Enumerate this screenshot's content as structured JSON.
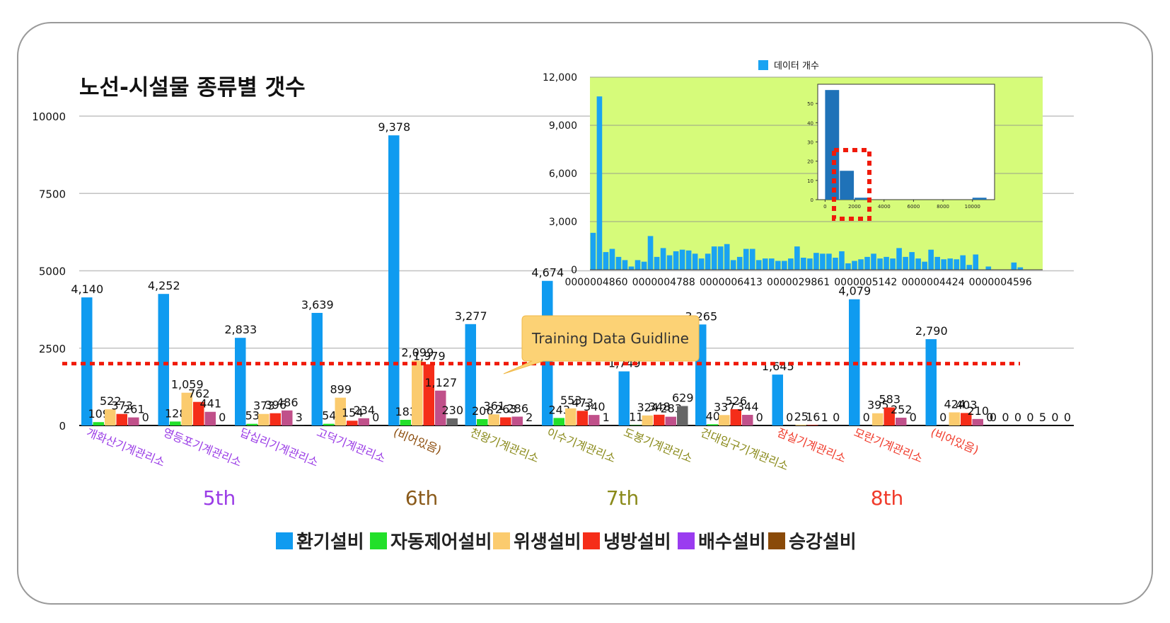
{
  "title": "노선-시설물 종류별 갯수",
  "callout": "Training Data Guidline",
  "legend": [
    {
      "label": "환기설비",
      "color": "#0f9bf0"
    },
    {
      "label": "자동제어설비",
      "color": "#22e02a"
    },
    {
      "label": "위생설비",
      "color": "#fbcb6e"
    },
    {
      "label": "냉방설비",
      "color": "#f52d19"
    },
    {
      "label": "배수설비",
      "color": "#9a3cf0"
    },
    {
      "label": "승강설비",
      "color": "#8a4a09"
    }
  ],
  "lines": [
    {
      "label": "5th",
      "color": "#9a3ce6"
    },
    {
      "label": "6th",
      "color": "#8a5a1a"
    },
    {
      "label": "7th",
      "color": "#8a8a1a"
    },
    {
      "label": "8th",
      "color": "#f03a2a"
    }
  ],
  "chart_data": [
    {
      "type": "bar",
      "title": "노선-시설물 종류별 갯수",
      "ylim": [
        0,
        10000
      ],
      "yticks": [
        "0",
        "2500",
        "5000",
        "7500",
        "10000"
      ],
      "guideline_value": 2000,
      "series_colors": [
        "#0f9bf0",
        "#22e02a",
        "#fbcb6e",
        "#f52d19",
        "#c0508a",
        "#666666"
      ],
      "categories": [
        {
          "name": "개화산기계관리소",
          "line": "5th",
          "name_color": "#9a3ce6",
          "values": [
            4140,
            109,
            522,
            373,
            261,
            0
          ],
          "labels": [
            "4,140",
            "109",
            "522",
            "373",
            "261",
            "0"
          ]
        },
        {
          "name": "영등포기계관리소",
          "line": "5th",
          "name_color": "#9a3ce6",
          "values": [
            4252,
            128,
            1059,
            762,
            441,
            0
          ],
          "labels": [
            "4,252",
            "128",
            "1,059",
            "762",
            "441",
            "0"
          ]
        },
        {
          "name": "답십리기계관리소",
          "line": "5th",
          "name_color": "#9a3ce6",
          "values": [
            2833,
            53,
            373,
            396,
            486,
            3
          ],
          "labels": [
            "2,833",
            "53",
            "373",
            "396",
            "486",
            "3"
          ]
        },
        {
          "name": "고덕기계관리소",
          "line": "5th",
          "name_color": "#9a3ce6",
          "values": [
            3639,
            54,
            899,
            154,
            234,
            0
          ],
          "labels": [
            "3,639",
            "54",
            "899",
            "154",
            "234",
            "0"
          ]
        },
        {
          "name": "(비어있음)",
          "line": "6th",
          "name_color": "#8a4a09",
          "values": [
            9378,
            183,
            2099,
            1979,
            1127,
            230
          ],
          "labels": [
            "9,378",
            "183",
            "2,099",
            "1,979",
            "1,127",
            "230"
          ]
        },
        {
          "name": "천왕기계관리소",
          "line": "6th",
          "name_color": "#8a8a1a",
          "values": [
            3277,
            206,
            361,
            263,
            286,
            2
          ],
          "labels": [
            "3,277",
            "206",
            "361",
            "263",
            "286",
            "2"
          ]
        },
        {
          "name": "이수기계관리소",
          "line": "7th",
          "name_color": "#8a8a1a",
          "values": [
            4674,
            243,
            553,
            473,
            340,
            1
          ],
          "labels": [
            "4,674",
            "243",
            "553",
            "473",
            "340",
            "1"
          ]
        },
        {
          "name": "도봉기계관리소",
          "line": "7th",
          "name_color": "#8a8a1a",
          "values": [
            1749,
            11,
            324,
            348,
            283,
            629
          ],
          "labels": [
            "1,749",
            "11",
            "324",
            "348",
            "283",
            "629"
          ]
        },
        {
          "name": "건대입구기계관리소",
          "line": "7th",
          "name_color": "#8a8a1a",
          "values": [
            3265,
            40,
            337,
            526,
            344,
            0
          ],
          "labels": [
            "3,265",
            "40",
            "337",
            "526",
            "344",
            "0"
          ]
        },
        {
          "name": "잠실기계관리소",
          "line": "8th",
          "name_color": "#f03a2a",
          "values": [
            1645,
            0,
            25,
            16,
            1,
            0
          ],
          "labels": [
            "1,645",
            "0",
            "25",
            "16",
            "1",
            "0"
          ]
        },
        {
          "name": "모란기계관리소",
          "line": "8th",
          "name_color": "#f03a2a",
          "values": [
            4079,
            0,
            395,
            583,
            252,
            0
          ],
          "labels": [
            "4,079",
            "0",
            "395",
            "583",
            "252",
            "0"
          ]
        },
        {
          "name": "(비어있음)",
          "line": "8th",
          "name_color": "#f03a2a",
          "values": [
            2790,
            0,
            424,
            403,
            210,
            0
          ],
          "labels": [
            "2,790",
            "0",
            "424",
            "403",
            "210",
            "0"
          ]
        }
      ],
      "trailing_zero_labels": [
        "0",
        "0",
        "0",
        "0",
        "5",
        "0",
        "0"
      ]
    },
    {
      "type": "bar",
      "legend": "데이터 개수",
      "color": "#1aa3f2",
      "background": "#d6fb7a",
      "ylim": [
        0,
        12000
      ],
      "yticks": [
        "0",
        "3,000",
        "6,000",
        "9,000",
        "12,000"
      ],
      "xtick_labels": [
        "0000004860",
        "0000004788",
        "0000006413",
        "0000029861",
        "0000005142",
        "0000004424",
        "0000004596"
      ],
      "values": [
        2300,
        10800,
        1100,
        1300,
        800,
        600,
        200,
        600,
        500,
        2100,
        800,
        1350,
        900,
        1150,
        1250,
        1200,
        1000,
        700,
        1000,
        1450,
        1450,
        1600,
        600,
        800,
        1300,
        1300,
        600,
        700,
        700,
        550,
        550,
        700,
        1450,
        750,
        700,
        1050,
        1000,
        1000,
        750,
        1150,
        400,
        550,
        650,
        800,
        1000,
        700,
        800,
        700,
        1350,
        800,
        1100,
        700,
        500,
        1250,
        800,
        650,
        700,
        650,
        900,
        300,
        950,
        0,
        200,
        0,
        0,
        0,
        450,
        150,
        0,
        0,
        0
      ]
    },
    {
      "type": "bar",
      "color": "#1f72b8",
      "xlim": [
        -500,
        11500
      ],
      "ylim": [
        0,
        60
      ],
      "xticks": [
        "0",
        "2000",
        "4000",
        "6000",
        "8000",
        "10000"
      ],
      "yticks": [
        "0",
        "10",
        "20",
        "30",
        "40",
        "50"
      ],
      "x": [
        500,
        1500,
        2500,
        10500
      ],
      "values": [
        57,
        15,
        1,
        1
      ]
    }
  ]
}
